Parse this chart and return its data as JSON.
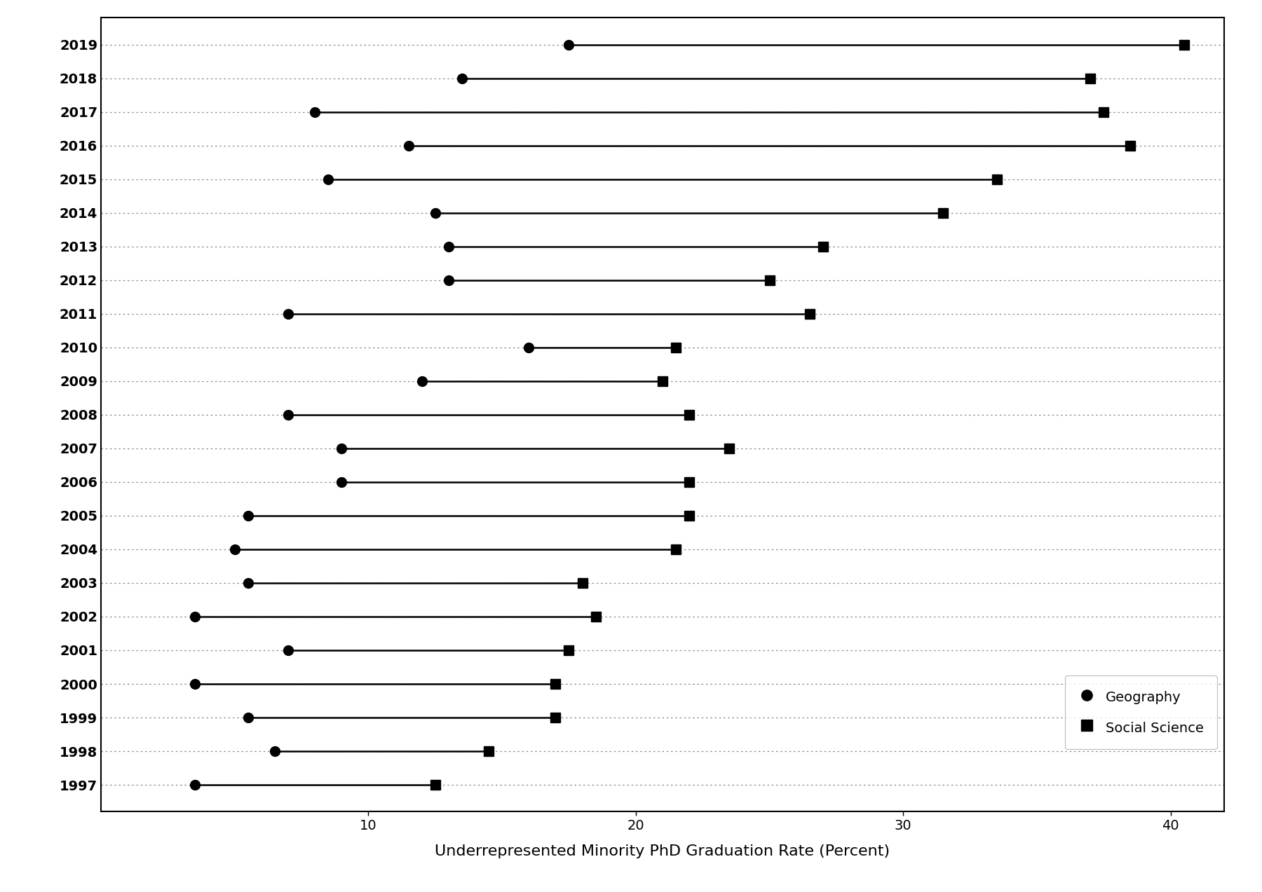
{
  "years": [
    2019,
    2018,
    2017,
    2016,
    2015,
    2014,
    2013,
    2012,
    2011,
    2010,
    2009,
    2008,
    2007,
    2006,
    2005,
    2004,
    2003,
    2002,
    2001,
    2000,
    1999,
    1998,
    1997
  ],
  "geography": [
    17.5,
    13.5,
    8.0,
    11.5,
    8.5,
    12.5,
    13.0,
    13.0,
    7.0,
    16.0,
    12.0,
    7.0,
    9.0,
    9.0,
    5.5,
    5.0,
    5.5,
    3.5,
    7.0,
    3.5,
    5.5,
    6.5,
    3.5
  ],
  "social_science": [
    40.5,
    37.0,
    37.5,
    38.5,
    33.5,
    31.5,
    27.0,
    25.0,
    26.5,
    21.5,
    21.0,
    22.0,
    23.5,
    22.0,
    22.0,
    21.5,
    18.0,
    18.5,
    17.5,
    17.0,
    17.0,
    14.5,
    12.5
  ],
  "xlabel": "Underrepresented Minority PhD Graduation Rate (Percent)",
  "geo_label": "Geography",
  "ss_label": "Social Science",
  "xlim": [
    0,
    42
  ],
  "xticks": [
    10,
    20,
    30,
    40
  ],
  "background_color": "#ffffff",
  "line_color": "#000000",
  "marker_geo": "o",
  "marker_ss": "s",
  "markersize": 10,
  "linewidth": 1.8,
  "grid_color": "#888888",
  "label_fontsize": 16,
  "tick_fontsize": 14,
  "legend_fontsize": 14
}
